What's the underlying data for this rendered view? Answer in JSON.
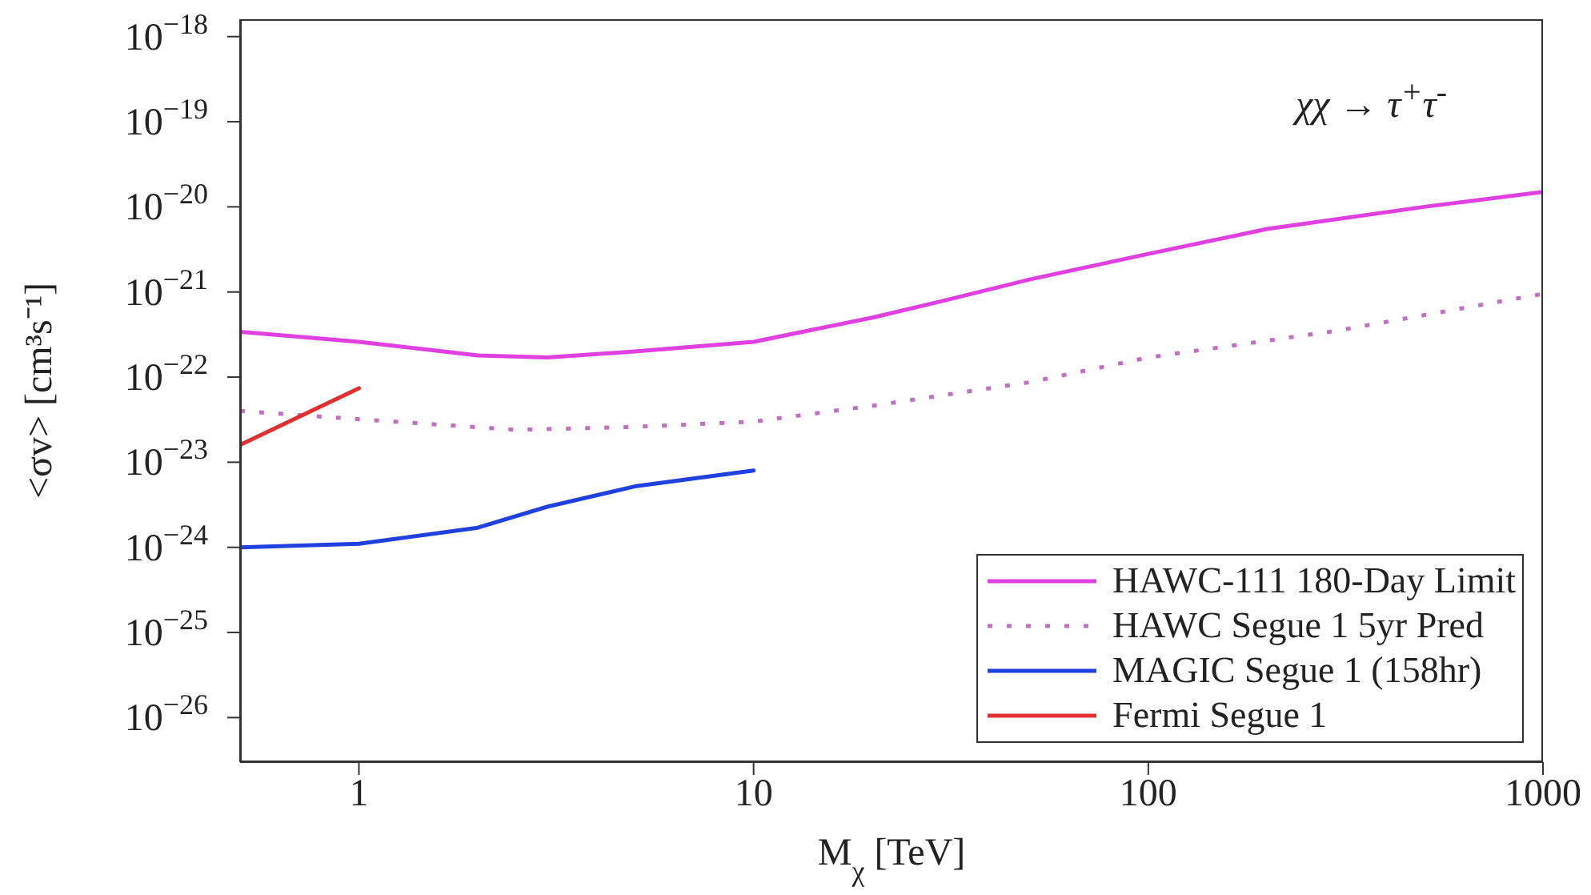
{
  "chart_data": {
    "type": "line",
    "xlabel": "M$_{χ}$ [TeV]",
    "ylabel": "<σv> [cm³s⁻¹]",
    "annotations": [
      "χχ → τ$^{+}$τ$^{-}$"
    ],
    "log": "xy",
    "xlim": [
      0.5,
      1000
    ],
    "xticks": [
      1,
      10,
      100,
      1000
    ],
    "ylim": [
      3e-27,
      1.6e-18
    ],
    "yticks": [
      {
        "value": 1e-18,
        "label": "10$^{−18}$"
      },
      {
        "value": 1e-19,
        "label": "10$^{−19}$"
      },
      {
        "value": 1e-20,
        "label": "10$^{−20}$"
      },
      {
        "value": 1e-21,
        "label": "10$^{−21}$"
      },
      {
        "value": 1e-22,
        "label": "10$^{−22}$"
      },
      {
        "value": 1e-23,
        "label": "10$^{−23}$"
      },
      {
        "value": 1e-24,
        "label": "10$^{−24}$"
      },
      {
        "value": 1e-25,
        "label": "10$^{−25}$"
      },
      {
        "value": 1e-26,
        "label": "10$^{−26}$"
      }
    ],
    "legend": "bottom right",
    "grid": false,
    "series": [
      {
        "name": "HAWC-111 180-Day Limit",
        "color": "#e040e0",
        "line_style": "solid",
        "x": [
          0.5,
          1,
          2,
          3,
          5,
          10,
          20,
          30,
          50,
          100,
          200,
          500,
          1000
        ],
        "values": [
          3.4e-22,
          2.6e-22,
          1.8e-22,
          1.7e-22,
          2e-22,
          2.6e-22,
          5e-22,
          7.8e-22,
          1.4e-21,
          2.8e-21,
          5.5e-21,
          1e-20,
          1.5e-20
        ]
      },
      {
        "name": "HAWC Segue 1 5yr Pred",
        "color": "#c070c0",
        "line_style": "dotted",
        "x": [
          0.5,
          1,
          2.5,
          5,
          10,
          20,
          50,
          100,
          300,
          1000
        ],
        "values": [
          4e-23,
          3.2e-23,
          2.4e-23,
          2.6e-23,
          3e-23,
          4.6e-23,
          8.7e-23,
          1.7e-22,
          3.5e-22,
          9.5e-22
        ]
      },
      {
        "name": "MAGIC Segue 1 (158hr)",
        "color": "#2040e0",
        "line_style": "solid",
        "x": [
          0.5,
          1,
          2,
          3,
          5,
          10
        ],
        "values": [
          1e-24,
          1.1e-24,
          1.7e-24,
          3e-24,
          5.2e-24,
          8e-24
        ]
      },
      {
        "name": "Fermi Segue 1",
        "color": "#e03030",
        "line_style": "solid",
        "x": [
          0.5,
          1
        ],
        "values": [
          1.6e-23,
          7.4e-23
        ]
      }
    ]
  }
}
